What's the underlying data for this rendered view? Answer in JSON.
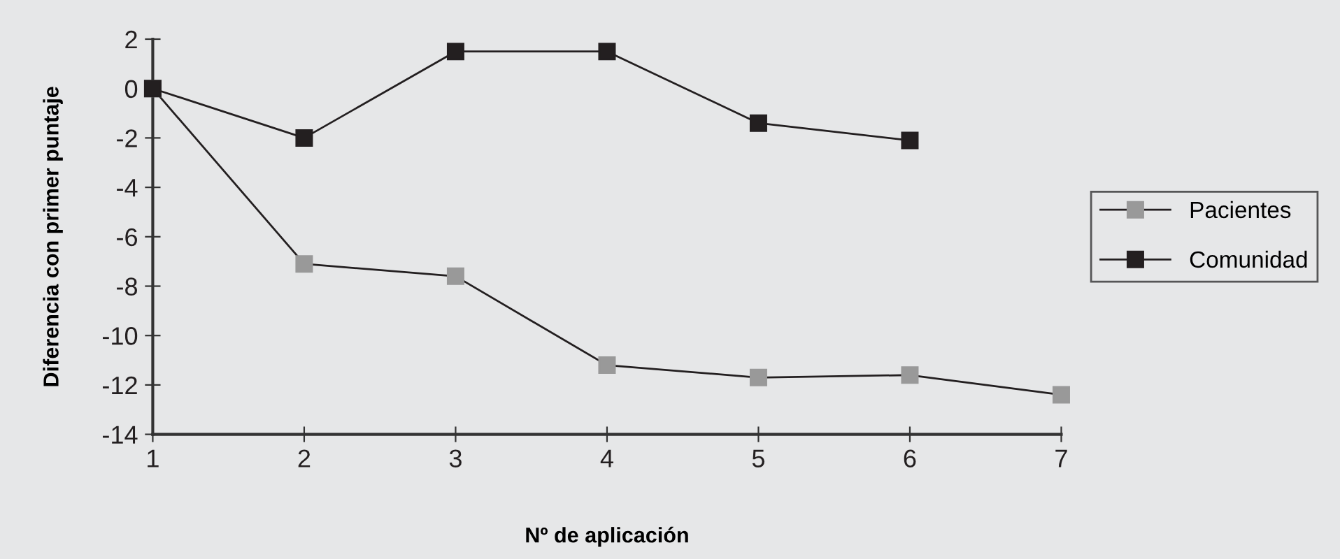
{
  "chart_data": {
    "type": "line",
    "xlabel": "Nº de aplicación",
    "ylabel": "Diferencia con primer puntaje",
    "x": [
      1,
      2,
      3,
      4,
      5,
      6,
      7
    ],
    "series": [
      {
        "name": "Pacientes",
        "color": "#999999",
        "values": [
          0,
          -7.1,
          -7.6,
          -11.2,
          -11.7,
          -11.6,
          -12.4
        ]
      },
      {
        "name": "Comunidad",
        "color": "#231f20",
        "values": [
          0,
          -2,
          1.5,
          1.5,
          -1.4,
          -2.1,
          null
        ]
      }
    ],
    "xlim": [
      1,
      7
    ],
    "xticks": [
      1,
      2,
      3,
      4,
      5,
      6,
      7
    ],
    "ylim": [
      -14,
      2
    ],
    "yticks": [
      -14,
      -12,
      -10,
      -8,
      -6,
      -4,
      -2,
      0,
      2
    ],
    "marker": "square",
    "line_style": "solid",
    "grid": false,
    "legend": "right"
  }
}
